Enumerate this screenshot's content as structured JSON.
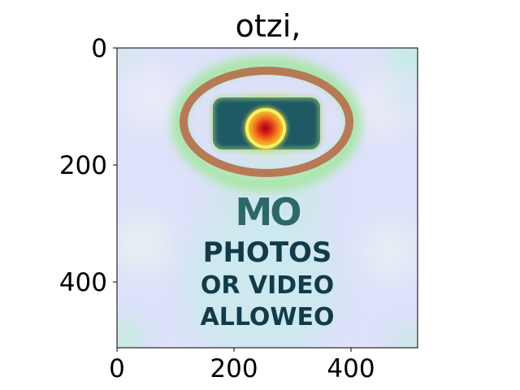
{
  "title": "otzi,",
  "image": {
    "sign_text": [
      "MO",
      "PHOTOS",
      "OR VIDEO",
      "ALLOWEO"
    ],
    "overlay": "heatmap",
    "colors": {
      "background": "#dfe2fb",
      "ring": "#b67a55",
      "camera": "#1d5a63",
      "hotspot": "#d7191c",
      "text": "#123b4a"
    }
  },
  "axes": {
    "x_ticks": [
      "0",
      "200",
      "400"
    ],
    "y_ticks": [
      "0",
      "200",
      "400"
    ],
    "x_range": [
      0,
      512
    ],
    "y_range": [
      0,
      512
    ]
  }
}
